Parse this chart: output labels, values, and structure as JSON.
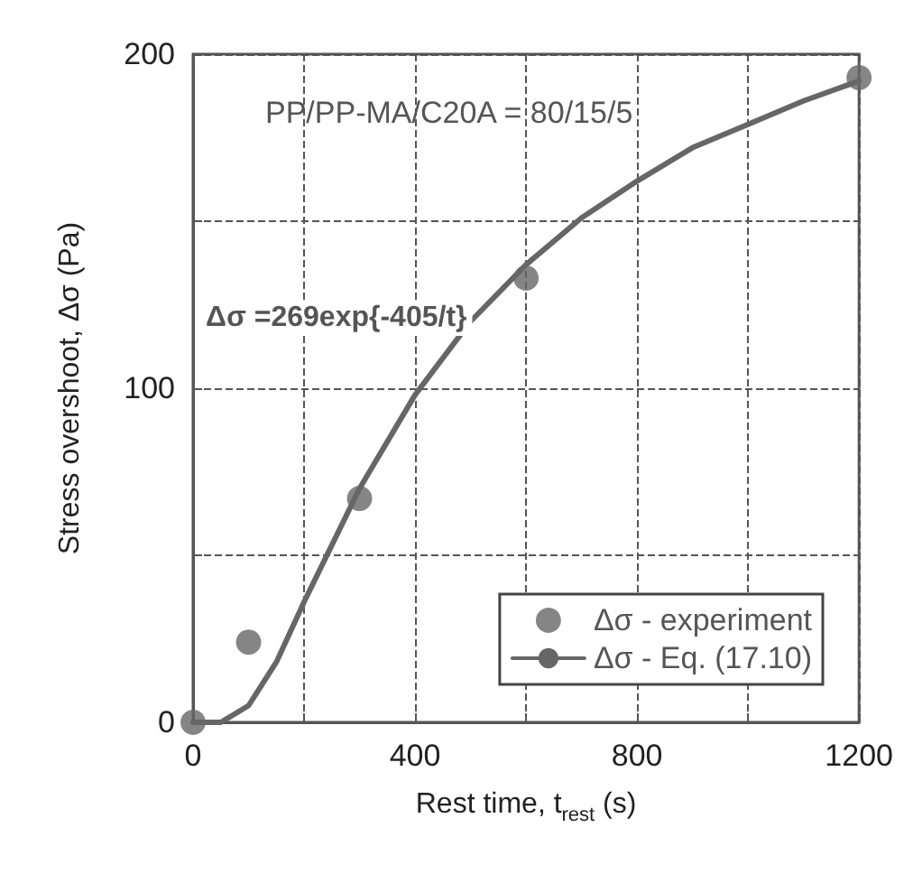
{
  "chart_data": {
    "type": "scatter",
    "xlabel": "Rest time, t$_{rest}$ (s)",
    "ylabel": "Stress overshoot, Δσ (Pa)",
    "annotations": [
      "PP/PP-MA/C20A = 80/15/5",
      "Δσ =269exp{-405/t}"
    ],
    "series": [
      {
        "name": "Δσ - experiment",
        "color": "#666666",
        "marker": "circle",
        "x": [
          0,
          100,
          300,
          600,
          1200
        ],
        "values": [
          0,
          24,
          67,
          133,
          193
        ]
      },
      {
        "name": "Δσ - Eq. (17.10)",
        "type": "line",
        "color": "#666666",
        "marker": "none",
        "line_style": "solid",
        "x": [
          0,
          50,
          100,
          150,
          200,
          250,
          300,
          400,
          500,
          600,
          700,
          800,
          900,
          1000,
          1100,
          1200
        ],
        "values": [
          0,
          0,
          5,
          18,
          36,
          53,
          70,
          98,
          120,
          137,
          151,
          162,
          172,
          179,
          186,
          192
        ]
      }
    ],
    "xlim": [
      0,
      1200
    ],
    "xticks": [
      0,
      {
        "value": 200,
        "label": null
      },
      400,
      {
        "value": 600,
        "label": null
      },
      800,
      {
        "value": 1000,
        "label": null
      },
      1200
    ],
    "ylim": [
      0,
      200
    ],
    "yticks": [
      0,
      {
        "value": 50,
        "label": null
      },
      100,
      {
        "value": 150,
        "label": null
      },
      200
    ],
    "grid": true,
    "legend": "bottom right"
  }
}
